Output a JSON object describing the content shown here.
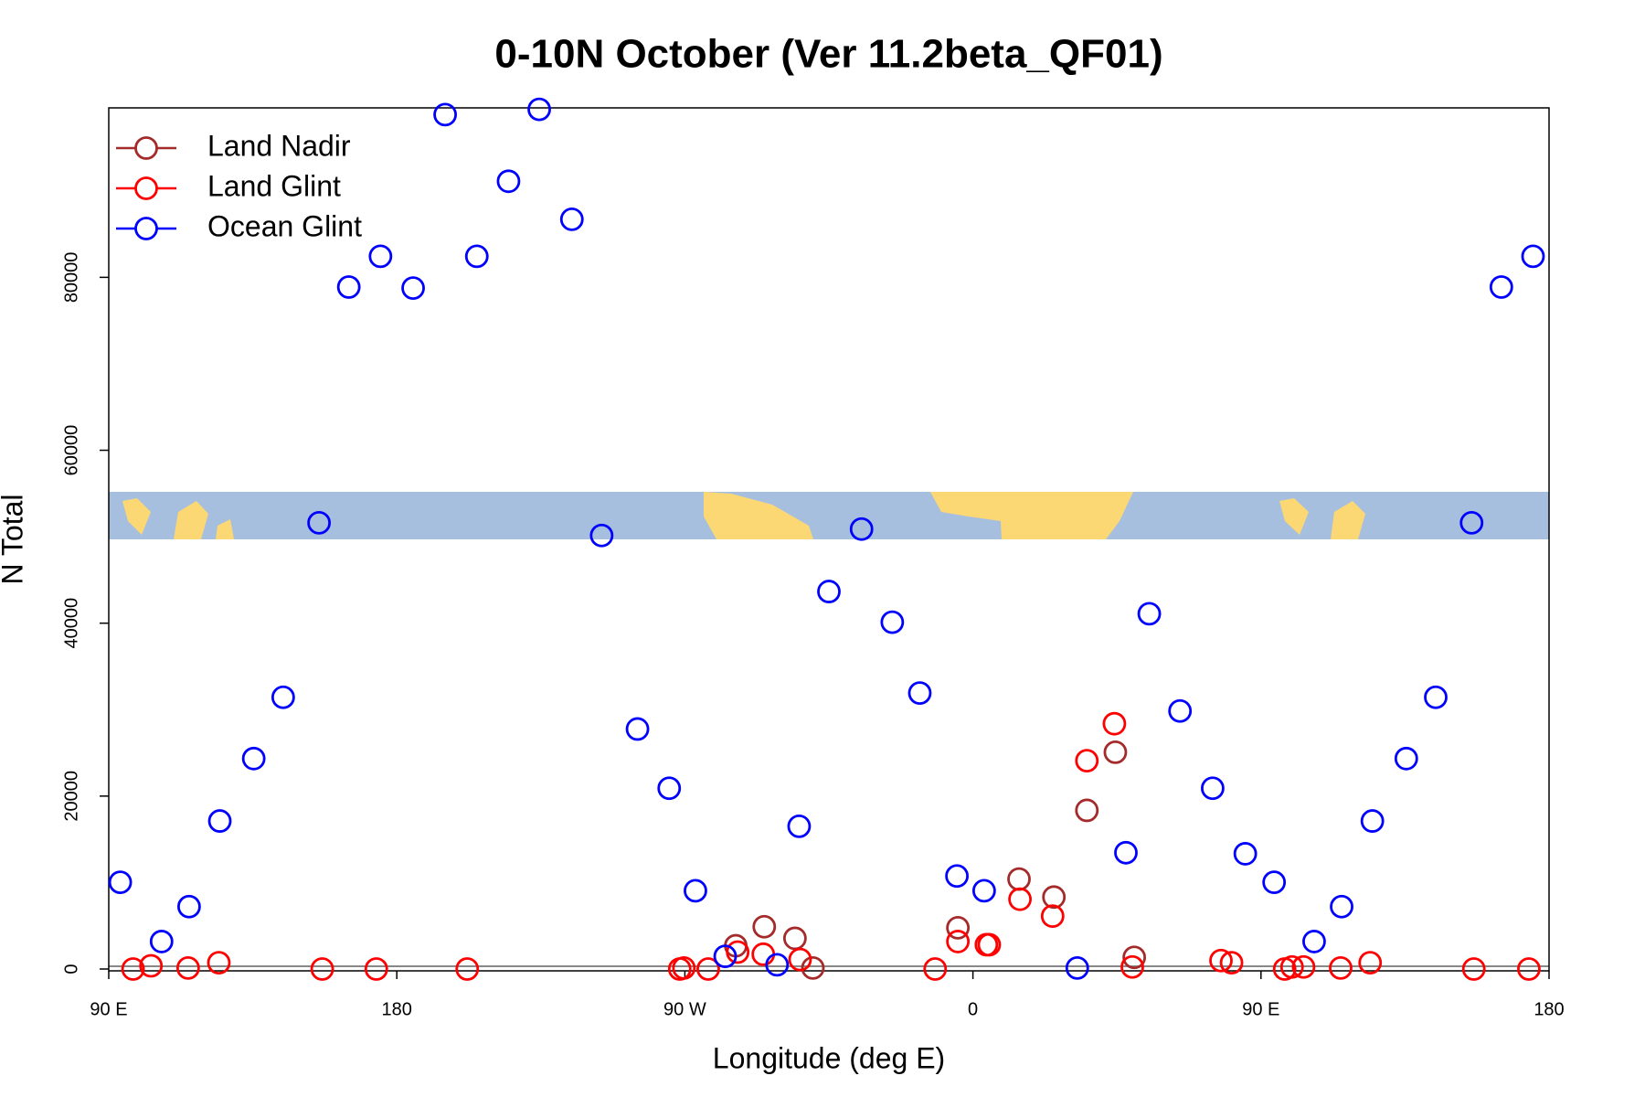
{
  "chart_data": {
    "type": "scatter",
    "title": "0-10N October (Ver 11.2beta_QF01)",
    "x_label": "Longitude (deg E)",
    "y_label": "N Total",
    "xlim": [
      90,
      540
    ],
    "ylim": [
      0,
      99600
    ],
    "xticks": [
      {
        "value": 90,
        "label": "90 E"
      },
      180,
      {
        "value": 270,
        "label": "90 W"
      },
      {
        "value": 360,
        "label": "0"
      },
      {
        "value": 450,
        "label": "90 E"
      },
      {
        "value": 540,
        "label": "180"
      }
    ],
    "yticks": [
      0,
      20000,
      40000,
      60000,
      80000
    ],
    "legend": "top-left",
    "series": [
      {
        "name": "Land Nadir",
        "color": "#a52a2a",
        "x": [
          285.9,
          294.8,
          304.4,
          310.0,
          355.3,
          374.4,
          385.3,
          395.6,
          404.5,
          410.4
        ],
        "values": [
          2690,
          4890,
          3550,
          120,
          4770,
          10400,
          8320,
          18350,
          25070,
          1350
        ]
      },
      {
        "name": "Land Glint",
        "color": "#ff0000",
        "x": [
          97.6,
          103.2,
          114.8,
          124.4,
          156.7,
          173.6,
          202.0,
          268.4,
          269.7,
          277.3,
          286.5,
          294.5,
          306.0,
          348.2,
          355.3,
          364.2,
          365.1,
          374.7,
          384.9,
          395.6,
          404.2,
          409.8,
          437.5,
          440.8,
          457.4,
          459.7,
          463.3,
          474.9,
          484.1,
          516.5,
          533.7
        ],
        "values": [
          0,
          370,
          120,
          730,
          0,
          0,
          0,
          0,
          120,
          0,
          1960,
          1710,
          1100,
          0,
          3180,
          2810,
          2810,
          8070,
          6120,
          24090,
          28370,
          240,
          980,
          730,
          0,
          240,
          240,
          120,
          730,
          0,
          0
        ]
      },
      {
        "name": "Ocean Glint",
        "color": "#0000ff",
        "x": [
          93.6,
          106.5,
          115.1,
          124.7,
          135.3,
          144.5,
          155.7,
          165.0,
          174.9,
          185.1,
          195.1,
          205.0,
          214.9,
          224.5,
          234.7,
          244.0,
          255.2,
          265.1,
          273.3,
          282.6,
          298.8,
          305.7,
          315.0,
          325.2,
          334.8,
          343.4,
          355.0,
          363.5,
          392.6,
          407.8,
          415.1,
          424.7,
          434.9,
          445.1,
          454.1,
          466.6,
          475.2,
          484.8,
          495.4,
          504.6,
          515.8,
          525.1,
          535.0
        ],
        "values": [
          10030,
          3180,
          7220,
          17120,
          24340,
          31430,
          51610,
          78880,
          82430,
          78760,
          98820,
          82430,
          91110,
          99430,
          86710,
          50140,
          27760,
          20910,
          9050,
          1470,
          490,
          16510,
          43660,
          50880,
          40110,
          31920,
          10760,
          9050,
          120,
          13450,
          41090,
          29840,
          20910,
          13330,
          10030,
          3180,
          7220,
          17120,
          24340,
          31430,
          51610,
          78880,
          82430
        ]
      }
    ]
  }
}
